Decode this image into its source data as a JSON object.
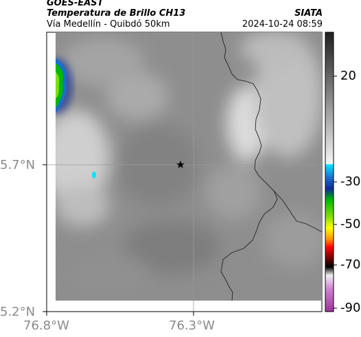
{
  "header": {
    "satellite": "GOES-EAST",
    "product": "Temperatura de Brillo CH13",
    "region": "Vía Medellín - Quibdó 50km",
    "org": "SIATA",
    "datetime": "2024-10-24 08:59"
  },
  "map": {
    "lat_labels": [
      "5.7°N",
      "5.2°N"
    ],
    "lon_labels": [
      "76.8°W",
      "76.3°W"
    ],
    "marker_icon": "star-icon"
  },
  "colorbar": {
    "tick_labels": [
      "20",
      "-30",
      "-50",
      "-70",
      "-90"
    ],
    "colors": [
      "#2b2b2b",
      "#ffffff",
      "#00e5ff",
      "#0a2a9a",
      "#00d000",
      "#ffff00",
      "#ff0000",
      "#000000",
      "#cc44cc"
    ]
  }
}
